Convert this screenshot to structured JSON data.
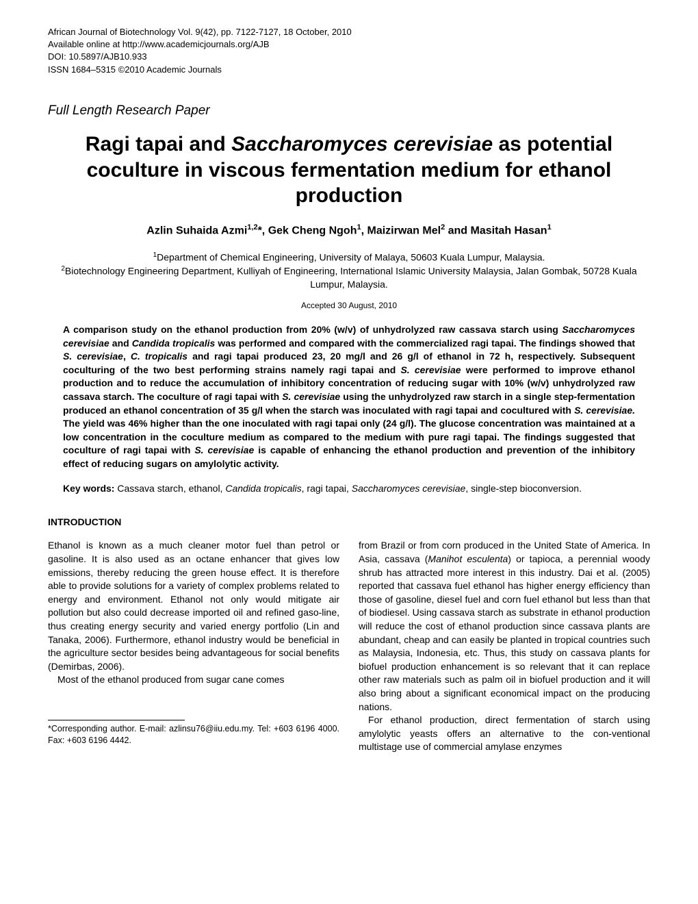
{
  "journal": {
    "line1": "African Journal of Biotechnology Vol. 9(42), pp. 7122-7127, 18 October, 2010",
    "line2": "Available online at http://www.academicjournals.org/AJB",
    "line3": "DOI: 10.5897/AJB10.933",
    "line4": "ISSN 1684–5315 ©2010 Academic Journals"
  },
  "paper_type": "Full Length Research Paper",
  "title_parts": {
    "p1": "Ragi tapai and ",
    "p2": "Saccharomyces cerevisiae",
    "p3": " as potential coculture in viscous fermentation medium for ethanol production"
  },
  "authors": {
    "a1_name": "Azlin Suhaida Azmi",
    "a1_sup": "1,2",
    "a1_star": "*",
    "a2_name": "Gek Cheng Ngoh",
    "a2_sup": "1",
    "a3_name": "Maizirwan Mel",
    "a3_sup": "2",
    "a4_name": "Masitah Hasan",
    "a4_sup": "1"
  },
  "affiliations": {
    "aff1_sup": "1",
    "aff1": "Department of Chemical Engineering, University of Malaya, 50603 Kuala Lumpur, Malaysia.",
    "aff2_sup": "2",
    "aff2": "Biotechnology Engineering Department, Kulliyah of Engineering, International Islamic University Malaysia, Jalan Gombak, 50728 Kuala Lumpur, Malaysia."
  },
  "accepted": "Accepted 30 August, 2010",
  "abstract": {
    "t1": "A comparison study on the ethanol production from 20% (w/v) of unhydrolyzed raw cassava starch using ",
    "t2": "Saccharomyces cerevisiae",
    "t3": " and ",
    "t4": "Candida tropicalis",
    "t5": " was performed and compared with the commercialized ragi tapai. The findings showed that ",
    "t6": "S. cerevisiae",
    "t7": ", ",
    "t8": "C. tropicalis",
    "t9": " and ragi tapai produced 23, 20 mg/l and 26 g/l of ethanol in 72 h, respectively. Subsequent coculturing of the two best performing strains namely ragi tapai and ",
    "t10": "S. cerevisiae",
    "t11": " were performed to improve ethanol production and to reduce the accumulation of inhibitory concentration of reducing sugar with 10% (w/v) unhydrolyzed raw cassava starch. The coculture of ragi tapai with ",
    "t12": "S. cerevisiae",
    "t13": " using the unhydrolyzed raw starch in a single step-fermentation produced an ethanol concentration of 35 g/l when the starch was inoculated with ragi tapai and cocultured with ",
    "t14": "S. cerevisiae.",
    "t15": " The yield was 46% higher than the one inoculated with ragi tapai only (24 g/l). The glucose concentration was maintained at a low concentration in the coculture medium as compared to the medium with pure ragi tapai. The findings suggested that coculture of ragi tapai with ",
    "t16": "S. cerevisiae",
    "t17": " is capable of enhancing the ethanol production and prevention of the inhibitory effect of reducing sugars on amylolytic activity."
  },
  "keywords": {
    "label": "Key words:",
    "k1": " Cassava starch, ethanol, ",
    "k2": "Candida tropicalis",
    "k3": ", ragi tapai, ",
    "k4": "Saccharomyces cerevisiae",
    "k5": ", single-step bioconversion."
  },
  "section_intro": "INTRODUCTION",
  "body": {
    "left_p1": "Ethanol is known as a much cleaner motor fuel than petrol or gasoline. It is also used as an octane enhancer that gives low emissions, thereby reducing the green house effect. It is therefore able to provide solutions for a variety of complex problems related to energy and environment. Ethanol not only would mitigate air pollution but also could decrease imported oil and refined gaso-line, thus creating energy security and varied energy portfolio (Lin and Tanaka, 2006). Furthermore, ethanol industry would be beneficial in the agriculture sector besides being advantageous for social benefits (Demirbas, 2006).",
    "left_p2": "Most of the ethanol produced from sugar  cane  comes",
    "right_p1a": "from Brazil or from corn produced in the United State of America. In Asia, cassava (",
    "right_p1b": "Manihot esculenta",
    "right_p1c": ") or tapioca, a perennial woody shrub has attracted more interest in this industry. Dai et al. (2005) reported that cassava fuel ethanol has higher energy efficiency than those of gasoline, diesel fuel and corn fuel ethanol but less than that of biodiesel. Using cassava starch as substrate in ethanol production will reduce the cost of ethanol production since cassava plants are abundant, cheap and can easily be planted in tropical countries such as Malaysia, Indonesia, etc. Thus, this study on cassava plants for biofuel production enhancement is so relevant that it can replace other raw materials such as palm oil in biofuel production and it will also bring about a significant economical impact on the producing nations.",
    "right_p2": "For ethanol production, direct fermentation of starch using amylolytic yeasts offers an alternative to the con-ventional multistage use of commercial amylase enzymes"
  },
  "corresponding": "*Corresponding author. E-mail: azlinsu76@iiu.edu.my. Tel: +603 6196 4000. Fax: +603 6196 4442."
}
